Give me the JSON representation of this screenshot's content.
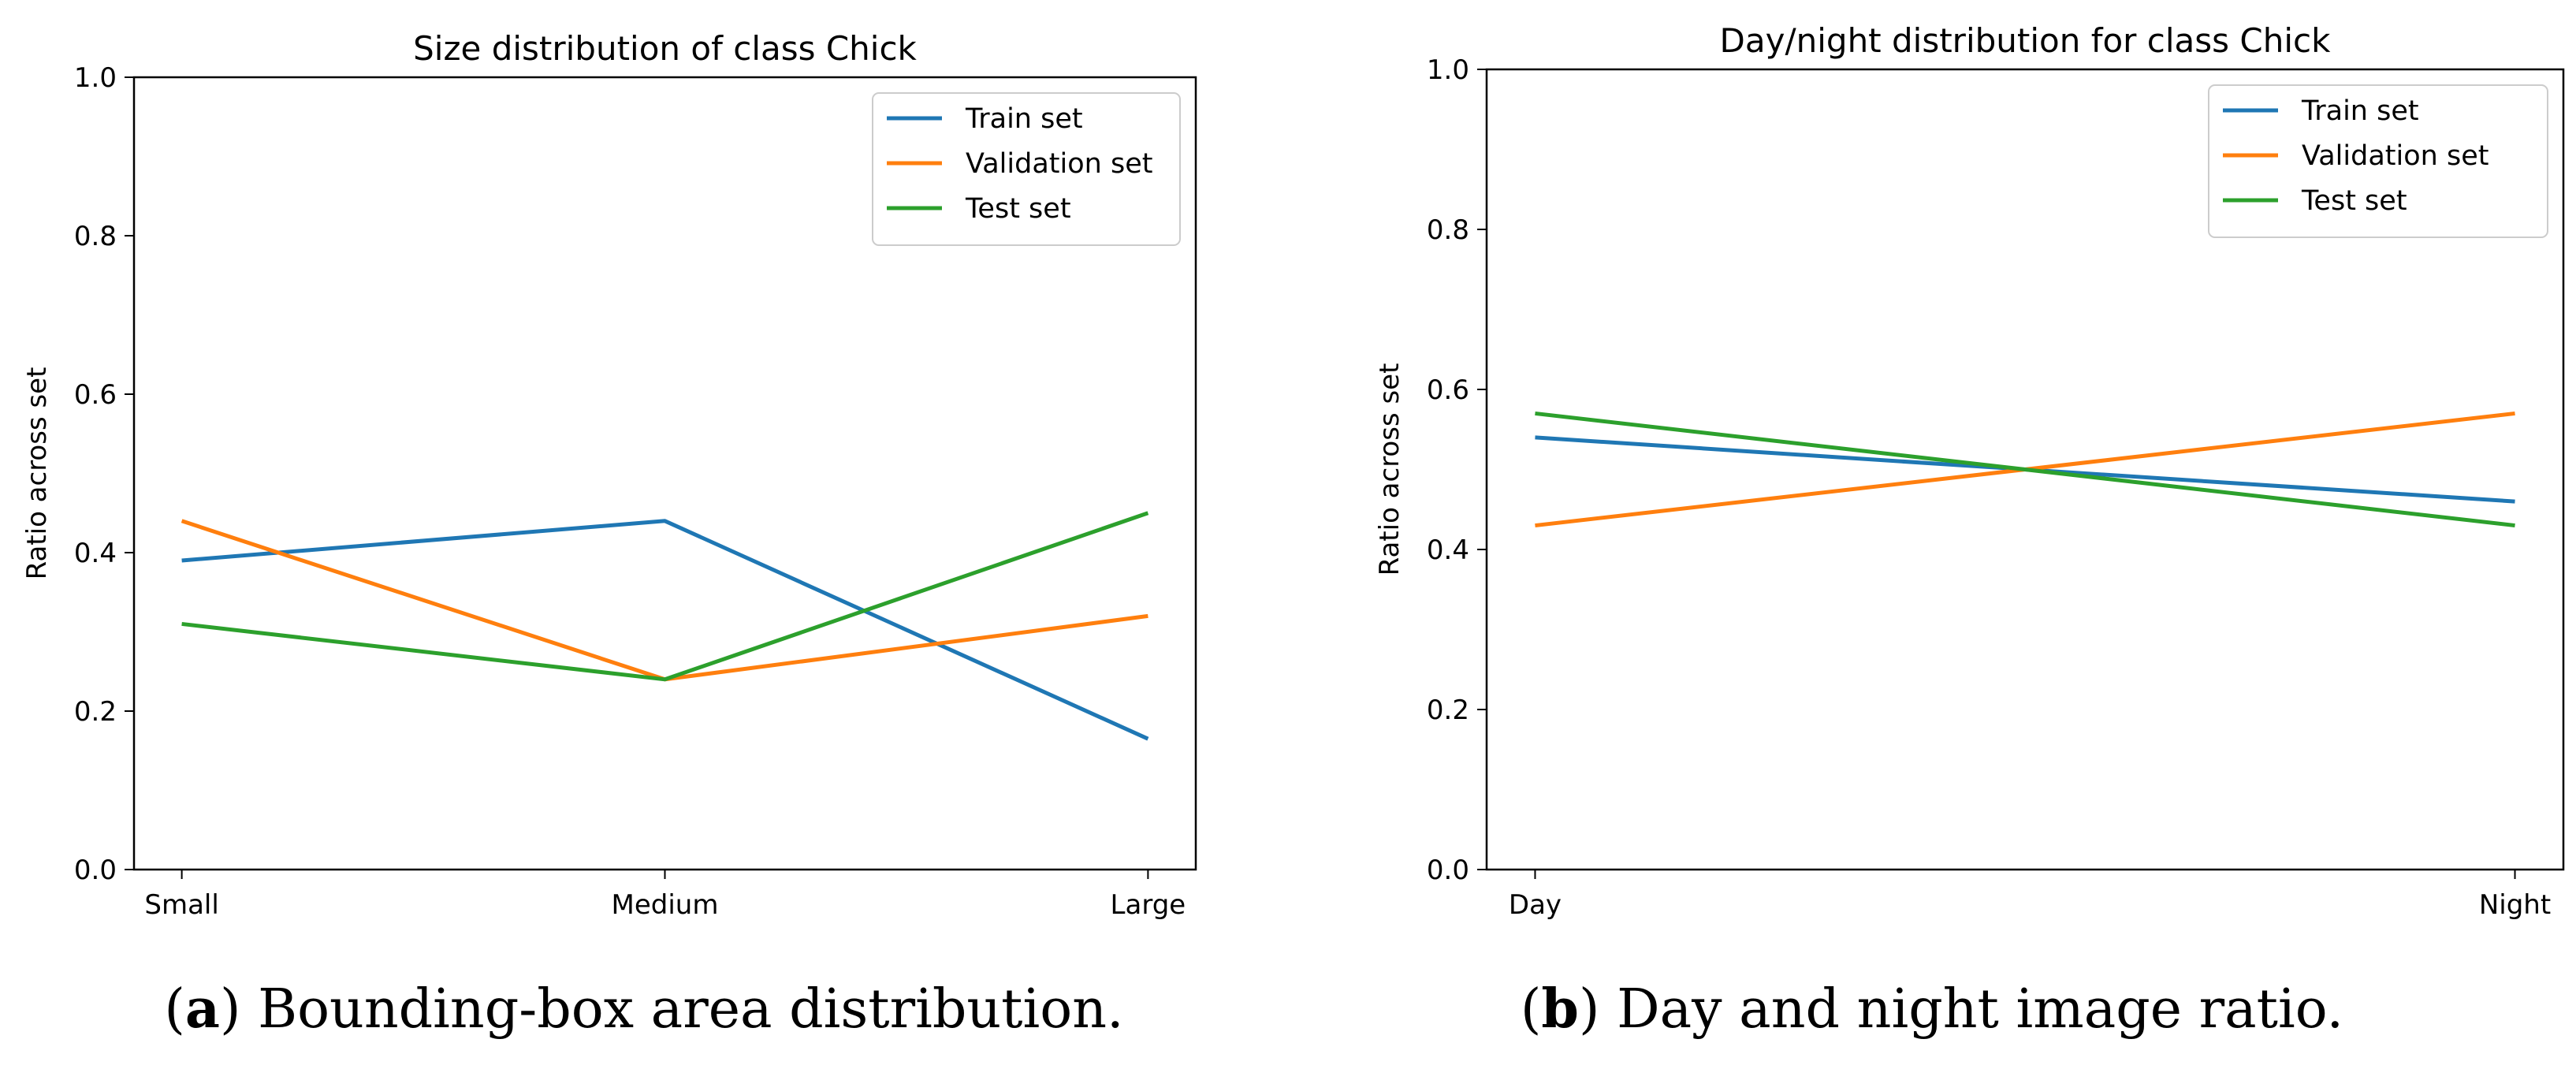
{
  "chart_data": [
    {
      "type": "line",
      "title": "Size distribution of class Chick",
      "xlabel": "",
      "ylabel": "Ratio across set",
      "categories": [
        "Small",
        "Medium",
        "Large"
      ],
      "ylim": [
        0,
        1.0
      ],
      "yticks": [
        "0.0",
        "0.2",
        "0.4",
        "0.6",
        "0.8",
        "1.0"
      ],
      "legend_position": "top-right",
      "series": [
        {
          "name": "Train set",
          "color": "#1f77b4",
          "values": [
            0.39,
            0.44,
            0.165
          ]
        },
        {
          "name": "Validation set",
          "color": "#ff7f0e",
          "values": [
            0.44,
            0.24,
            0.32
          ]
        },
        {
          "name": "Test set",
          "color": "#2ca02c",
          "values": [
            0.31,
            0.24,
            0.45
          ]
        }
      ],
      "caption_label": "a",
      "caption_text": "Bounding-box area distribution."
    },
    {
      "type": "line",
      "title": "Day/night distribution for class Chick",
      "xlabel": "",
      "ylabel": "Ratio across set",
      "categories": [
        "Day",
        "Night"
      ],
      "ylim": [
        0,
        1.0
      ],
      "yticks": [
        "0.0",
        "0.2",
        "0.4",
        "0.6",
        "0.8",
        "1.0"
      ],
      "legend_position": "top-right",
      "series": [
        {
          "name": "Train set",
          "color": "#1f77b4",
          "values": [
            0.54,
            0.46
          ]
        },
        {
          "name": "Validation set",
          "color": "#ff7f0e",
          "values": [
            0.43,
            0.57
          ]
        },
        {
          "name": "Test set",
          "color": "#2ca02c",
          "values": [
            0.57,
            0.43
          ]
        }
      ],
      "caption_label": "b",
      "caption_text": "Day and night image ratio."
    }
  ]
}
